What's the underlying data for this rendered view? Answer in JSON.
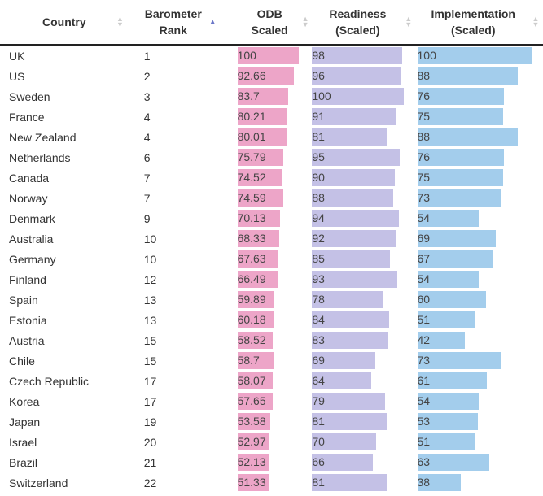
{
  "columns": [
    {
      "label_line1": "Country",
      "label_line2": ""
    },
    {
      "label_line1": "Barometer",
      "label_line2": "Rank"
    },
    {
      "label_line1": "ODB",
      "label_line2": "Scaled"
    },
    {
      "label_line1": "Readiness",
      "label_line2": "(Scaled)"
    },
    {
      "label_line1": "Implementation",
      "label_line2": "(Scaled)"
    }
  ],
  "sort_icons": {
    "idle": "sort-both-icon",
    "active": "sort-asc-icon"
  },
  "colors": {
    "odb": "#eda5c8",
    "readiness": "#c4c1e6",
    "implementation": "#a3cdec",
    "sort_active": "#6b77c8"
  },
  "rows": [
    {
      "country": "UK",
      "rank": "1",
      "odb": "100",
      "readiness": "98",
      "implementation": "100"
    },
    {
      "country": "US",
      "rank": "2",
      "odb": "92.66",
      "readiness": "96",
      "implementation": "88"
    },
    {
      "country": "Sweden",
      "rank": "3",
      "odb": "83.7",
      "readiness": "100",
      "implementation": "76"
    },
    {
      "country": "France",
      "rank": "4",
      "odb": "80.21",
      "readiness": "91",
      "implementation": "75"
    },
    {
      "country": "New Zealand",
      "rank": "4",
      "odb": "80.01",
      "readiness": "81",
      "implementation": "88"
    },
    {
      "country": "Netherlands",
      "rank": "6",
      "odb": "75.79",
      "readiness": "95",
      "implementation": "76"
    },
    {
      "country": "Canada",
      "rank": "7",
      "odb": "74.52",
      "readiness": "90",
      "implementation": "75"
    },
    {
      "country": "Norway",
      "rank": "7",
      "odb": "74.59",
      "readiness": "88",
      "implementation": "73"
    },
    {
      "country": "Denmark",
      "rank": "9",
      "odb": "70.13",
      "readiness": "94",
      "implementation": "54"
    },
    {
      "country": "Australia",
      "rank": "10",
      "odb": "68.33",
      "readiness": "92",
      "implementation": "69"
    },
    {
      "country": "Germany",
      "rank": "10",
      "odb": "67.63",
      "readiness": "85",
      "implementation": "67"
    },
    {
      "country": "Finland",
      "rank": "12",
      "odb": "66.49",
      "readiness": "93",
      "implementation": "54"
    },
    {
      "country": "Spain",
      "rank": "13",
      "odb": "59.89",
      "readiness": "78",
      "implementation": "60"
    },
    {
      "country": "Estonia",
      "rank": "13",
      "odb": "60.18",
      "readiness": "84",
      "implementation": "51"
    },
    {
      "country": "Austria",
      "rank": "15",
      "odb": "58.52",
      "readiness": "83",
      "implementation": "42"
    },
    {
      "country": "Chile",
      "rank": "15",
      "odb": "58.7",
      "readiness": "69",
      "implementation": "73"
    },
    {
      "country": "Czech Republic",
      "rank": "17",
      "odb": "58.07",
      "readiness": "64",
      "implementation": "61"
    },
    {
      "country": "Korea",
      "rank": "17",
      "odb": "57.65",
      "readiness": "79",
      "implementation": "54"
    },
    {
      "country": "Japan",
      "rank": "19",
      "odb": "53.58",
      "readiness": "81",
      "implementation": "53"
    },
    {
      "country": "Israel",
      "rank": "20",
      "odb": "52.97",
      "readiness": "70",
      "implementation": "51"
    },
    {
      "country": "Brazil",
      "rank": "21",
      "odb": "52.13",
      "readiness": "66",
      "implementation": "63"
    },
    {
      "country": "Switzerland",
      "rank": "22",
      "odb": "51.33",
      "readiness": "81",
      "implementation": "38"
    }
  ]
}
